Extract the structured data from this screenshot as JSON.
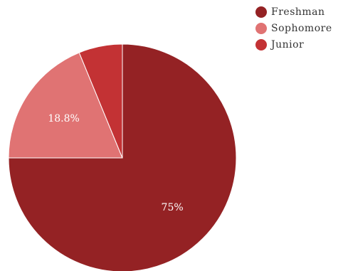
{
  "chart_data": {
    "type": "pie",
    "categories": [
      "Freshman",
      "Sophomore",
      "Junior"
    ],
    "values": [
      75,
      18.8,
      6.2
    ],
    "data_labels": [
      "75%",
      "18.8%",
      ""
    ],
    "colors": [
      "#942224",
      "#e07373",
      "#c33234"
    ],
    "start_angle_deg": 0,
    "direction": "clockwise",
    "legend": {
      "position": "top-right",
      "entries": [
        "Freshman",
        "Sophomore",
        "Junior"
      ]
    },
    "title": ""
  }
}
